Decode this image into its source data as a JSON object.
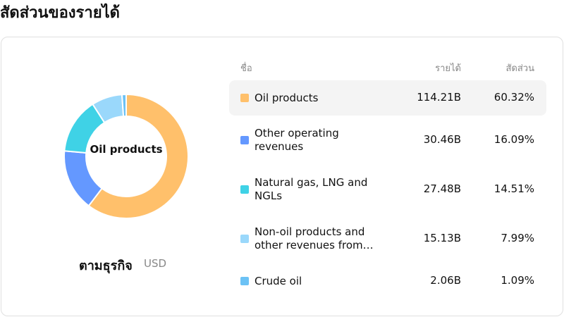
{
  "chart_data": {
    "type": "donut",
    "title": "สัดส่วนของรายได้",
    "subtitle": "ตามธุรกิจ",
    "unit": "USD",
    "columns": [
      "ชื่อ",
      "รายได้",
      "สัดส่วน"
    ],
    "categories": [
      "Oil products",
      "Other operating revenues",
      "Natural gas, LNG and NGLs",
      "Non-oil products and other revenues from…",
      "Crude oil"
    ],
    "colors": [
      "#ffc06b",
      "#6498ff",
      "#3fd2e6",
      "#9ad8fb",
      "#6cc2f5"
    ],
    "values": [
      60.32,
      16.09,
      14.51,
      7.99,
      1.09
    ],
    "value_labels": [
      "60.32%",
      "16.09%",
      "14.51%",
      "7.99%",
      "1.09%"
    ],
    "revenue": {
      "values": [
        114.21,
        30.46,
        27.48,
        15.13,
        2.06
      ],
      "value_labels": [
        "114.21B",
        "30.46B",
        "27.48B",
        "15.13B",
        "2.06B"
      ]
    },
    "highlighted": 0
  }
}
